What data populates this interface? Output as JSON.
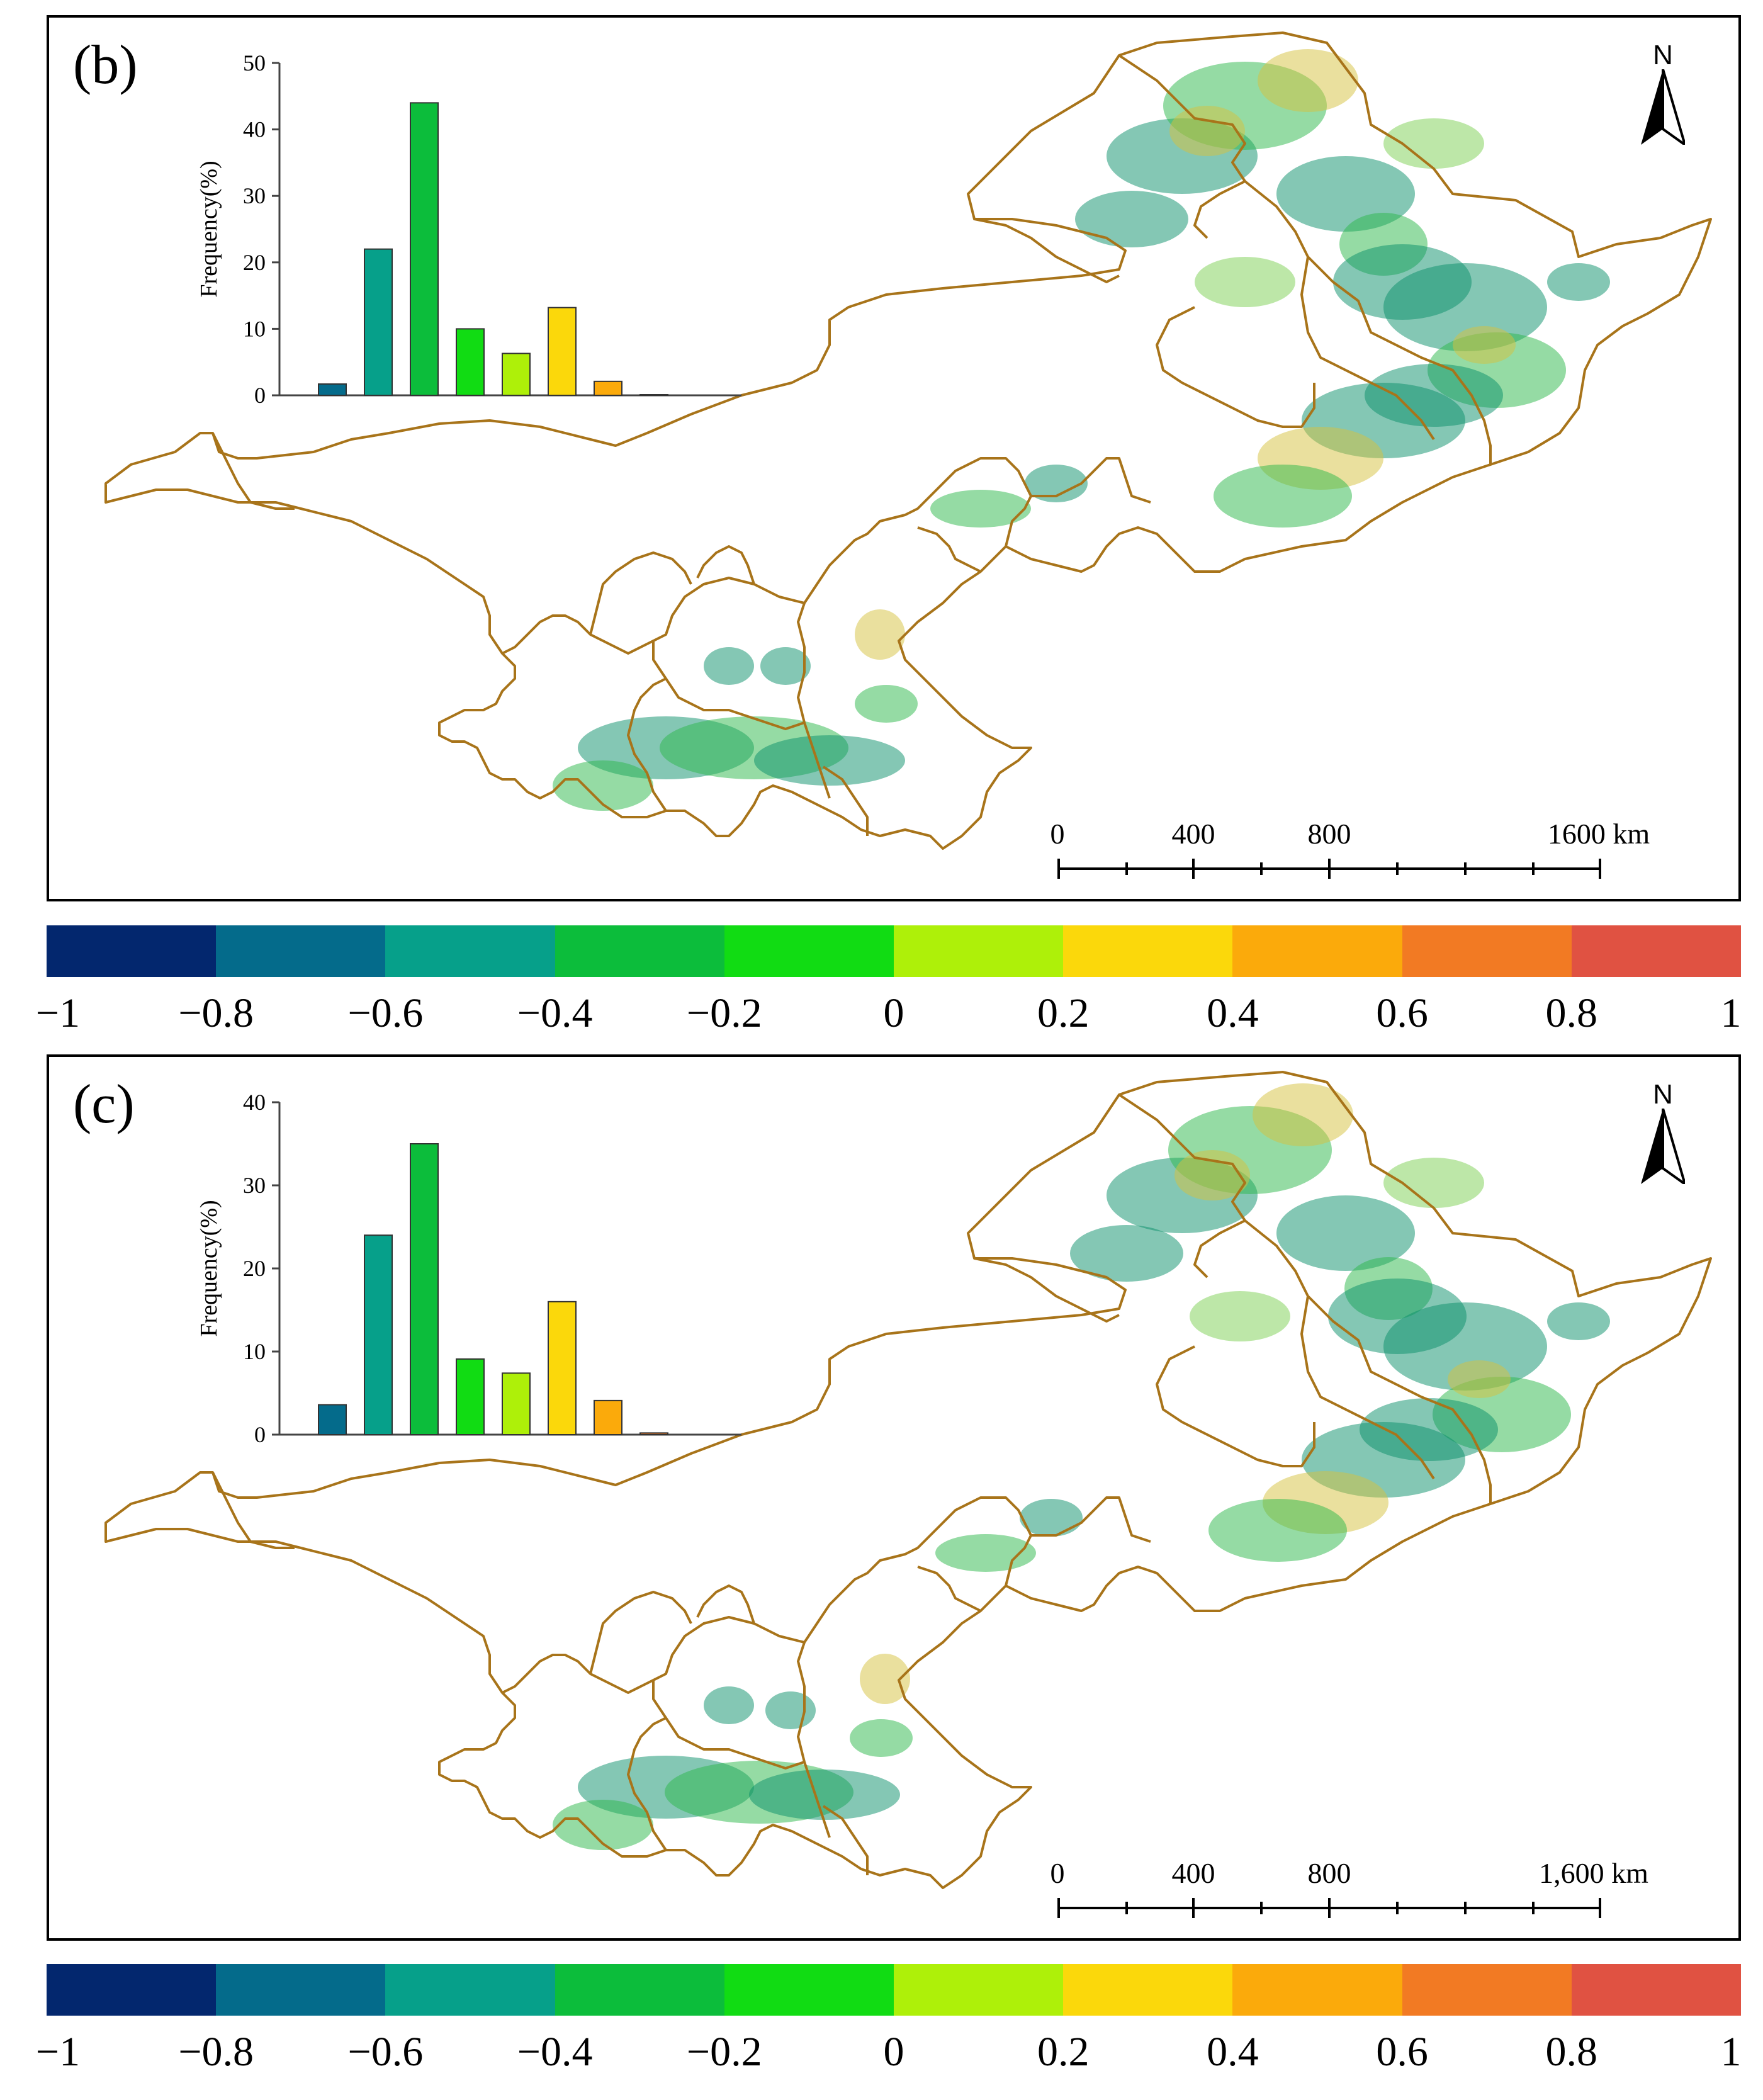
{
  "colors": {
    "boundary": "#a8741a",
    "bins": [
      "#03276e",
      "#046b8b",
      "#06a08a",
      "#0cbd3b",
      "#11dc13",
      "#aef009",
      "#fbd80b",
      "#fbaa0b",
      "#f27a23",
      "#e05242"
    ],
    "veg_dark": "#0a8f6a",
    "veg_green": "#2cb84a",
    "veg_light": "#7ccf52",
    "veg_yellow": "#d6c23e"
  },
  "colorbar": {
    "ticks": [
      "−1",
      "−0.8",
      "−0.6",
      "−0.4",
      "−0.2",
      "0",
      "0.2",
      "0.4",
      "0.6",
      "0.8",
      "1"
    ]
  },
  "panels": [
    {
      "id": "b",
      "label": "(b)",
      "north": "N",
      "scale_labels": [
        "0",
        "400",
        "800",
        "1600 km"
      ],
      "chart_data": {
        "type": "bar",
        "title": "",
        "xlabel": "",
        "ylabel": "Frequency(%)",
        "ylim": [
          0,
          50
        ],
        "yticks": [
          "0",
          "10",
          "20",
          "30",
          "40",
          "50"
        ],
        "categories": [
          "-0.8 to -0.6",
          "-0.6 to -0.4",
          "-0.4 to -0.2",
          "-0.2 to 0",
          "0 to 0.2",
          "0.2 to 0.4",
          "0.4 to 0.6",
          "0.6 to 0.8"
        ],
        "values": [
          1.7,
          22,
          44,
          10,
          6.3,
          13.2,
          2.1,
          0
        ],
        "bar_colors": [
          "#046b8b",
          "#06a08a",
          "#0cbd3b",
          "#11dc13",
          "#aef009",
          "#fbd80b",
          "#fbaa0b",
          "#f27a23"
        ]
      }
    },
    {
      "id": "c",
      "label": "(c)",
      "north": "N",
      "scale_labels": [
        "0",
        "400",
        "800",
        "1,600 km"
      ],
      "chart_data": {
        "type": "bar",
        "title": "",
        "xlabel": "",
        "ylabel": "Frequency(%)",
        "ylim": [
          0,
          40
        ],
        "yticks": [
          "0",
          "10",
          "20",
          "30",
          "40"
        ],
        "categories": [
          "-0.8 to -0.6",
          "-0.6 to -0.4",
          "-0.4 to -0.2",
          "-0.2 to 0",
          "0 to 0.2",
          "0.2 to 0.4",
          "0.4 to 0.6",
          "0.6 to 0.8"
        ],
        "values": [
          3.6,
          24,
          35,
          9.1,
          7.4,
          16,
          4.1,
          0.2
        ],
        "bar_colors": [
          "#046b8b",
          "#06a08a",
          "#0cbd3b",
          "#11dc13",
          "#aef009",
          "#fbd80b",
          "#fbaa0b",
          "#f27a23"
        ]
      }
    }
  ]
}
